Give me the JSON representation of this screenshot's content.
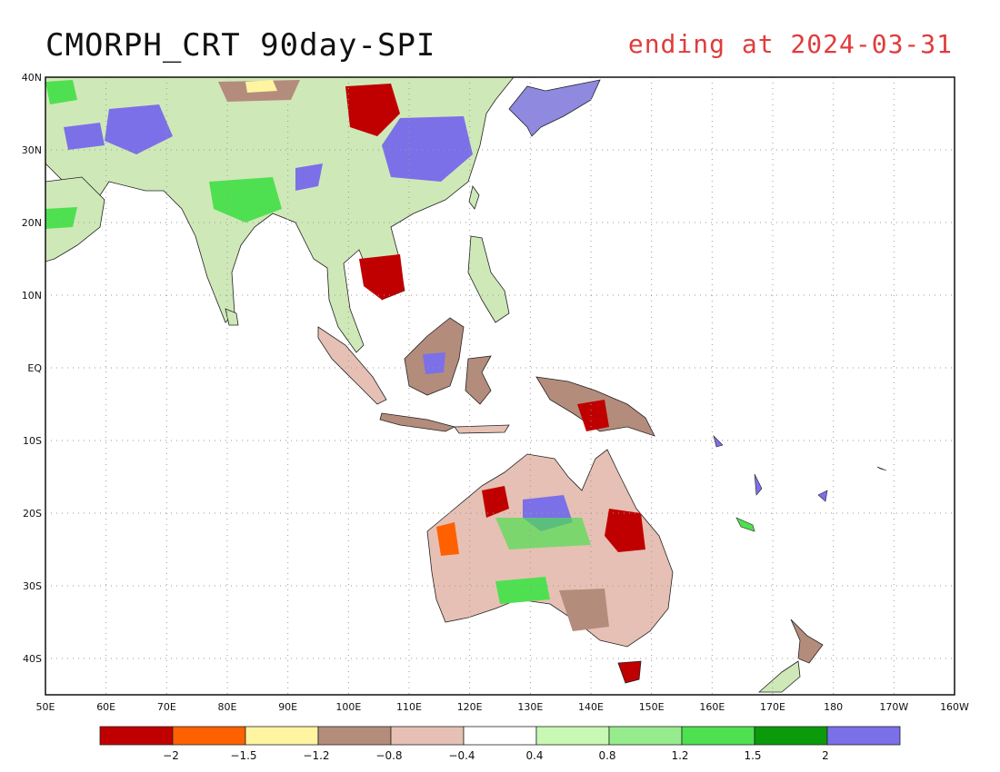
{
  "title": "CMORPH_CRT 90day-SPI",
  "subtitle": "ending at 2024-03-31",
  "map": {
    "projection": "equirectangular",
    "lon_range": [
      "50E",
      "160W"
    ],
    "lat_range": [
      "45S",
      "40N"
    ],
    "lon_ticks": [
      "50E",
      "60E",
      "70E",
      "80E",
      "90E",
      "100E",
      "110E",
      "120E",
      "130E",
      "140E",
      "150E",
      "160E",
      "170E",
      "180",
      "170W",
      "160W"
    ],
    "lat_ticks": [
      "40N",
      "30N",
      "20N",
      "10N",
      "EQ",
      "10S",
      "20S",
      "30S",
      "40S"
    ],
    "grid": "dotted"
  },
  "colorbar": {
    "colors": [
      "#c00000",
      "#ff6000",
      "#fff4a0",
      "#b48c7c",
      "#e6c0b4",
      "#ffffff",
      "#c8f8b4",
      "#96ec8c",
      "#4ee050",
      "#0a9a0a",
      "#7b70e8"
    ],
    "labels": [
      "-2",
      "-1.5",
      "-1.2",
      "-0.8",
      "-0.4",
      "0.4",
      "0.8",
      "1.2",
      "1.5",
      "2"
    ]
  }
}
